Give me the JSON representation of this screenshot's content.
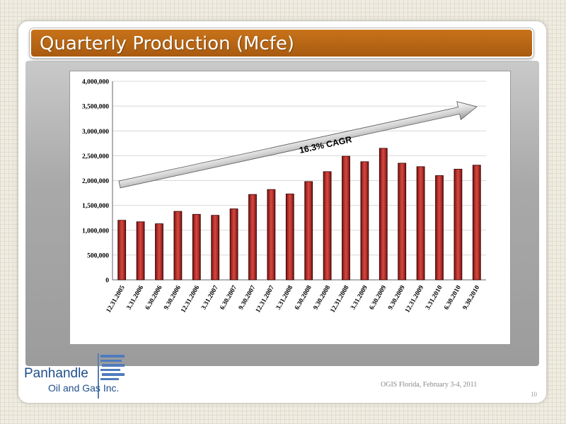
{
  "slide": {
    "title": "Quarterly Production (Mcfe)",
    "footer": "OGIS Florida, February 3-4, 2011",
    "page_number": "10"
  },
  "logo": {
    "name": "Panhandle",
    "subtitle": "Oil and Gas Inc."
  },
  "colors": {
    "title_bar": "#b8661a",
    "bar_fill": "#8b1a1a",
    "arrow": "#c8c8c8"
  },
  "chart_data": {
    "type": "bar",
    "annotation": "16.3% CAGR",
    "categories": [
      "12.31.2005",
      "3.31.2006",
      "6.30.2006",
      "9.30.2006",
      "12.31.2006",
      "3.31.2007",
      "6.30.2007",
      "9.30.2007",
      "12.31.2007",
      "3.31.2008",
      "6.30.2008",
      "9.30.2008",
      "12.31.2008",
      "3.31.2009",
      "6.30.2009",
      "9.30.2009",
      "12.31.2009",
      "3.31.2010",
      "6.30.2010",
      "9.30.2010"
    ],
    "values": [
      1200000,
      1170000,
      1130000,
      1380000,
      1320000,
      1300000,
      1430000,
      1720000,
      1820000,
      1730000,
      1980000,
      2180000,
      2490000,
      2380000,
      2650000,
      2350000,
      2280000,
      2100000,
      2230000,
      2310000
    ],
    "ylim": [
      0,
      4000000
    ],
    "yticks": [
      0,
      500000,
      1000000,
      1500000,
      2000000,
      2500000,
      3000000,
      3500000,
      4000000
    ],
    "ytick_labels": [
      "0",
      "500,000",
      "1,000,000",
      "1,500,000",
      "2,000,000",
      "2,500,000",
      "3,000,000",
      "3,500,000",
      "4,000,000"
    ],
    "grid": true
  }
}
